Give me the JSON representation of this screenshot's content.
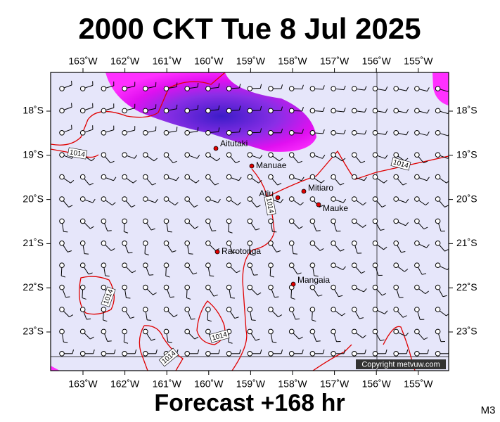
{
  "title": "2000 CKT Tue 8 Jul 2025",
  "longitude_labels": [
    "163˚W",
    "162˚W",
    "161˚W",
    "160˚W",
    "159˚W",
    "158˚W",
    "157˚W",
    "156˚W",
    "155˚W"
  ],
  "latitude_labels": [
    "18˚S",
    "19˚S",
    "20˚S",
    "21˚S",
    "22˚S",
    "23˚S"
  ],
  "places": [
    "Aitutaki",
    "Manuae",
    "Atiu",
    "Mitiaro",
    "Mauke",
    "Rarotonga",
    "Mangaia"
  ],
  "isobar_labels": [
    "1014",
    "1014",
    "1014",
    "1014",
    "1014",
    "1014"
  ],
  "copyright": "Copyright metvuw.com",
  "footer": "Forecast +168 hr",
  "code": "M3"
}
